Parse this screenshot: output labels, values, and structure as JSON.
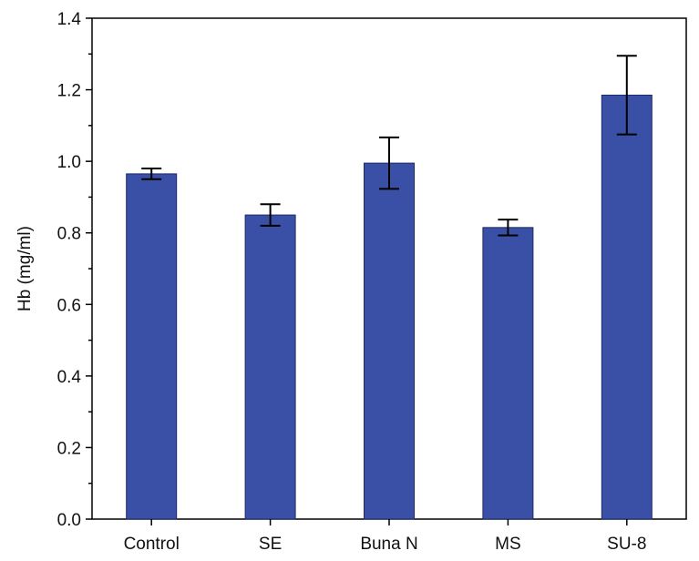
{
  "chart_data": {
    "type": "bar",
    "title": "",
    "xlabel": "",
    "ylabel": "Hb (mg/ml)",
    "ylim": [
      0,
      1.4
    ],
    "yticks": [
      "0.0",
      "0.2",
      "0.4",
      "0.6",
      "0.8",
      "1.0",
      "1.2",
      "1.4"
    ],
    "categories": [
      "Control",
      "SE",
      "Buna N",
      "MS",
      "SU-8"
    ],
    "values": [
      0.965,
      0.85,
      0.995,
      0.815,
      1.185
    ],
    "errors": [
      0.015,
      0.03,
      0.072,
      0.022,
      0.11
    ],
    "colors": {
      "bar": "#3a4fa6",
      "bar_edge": "#1e2a66"
    },
    "grid": false,
    "legend": "none"
  }
}
